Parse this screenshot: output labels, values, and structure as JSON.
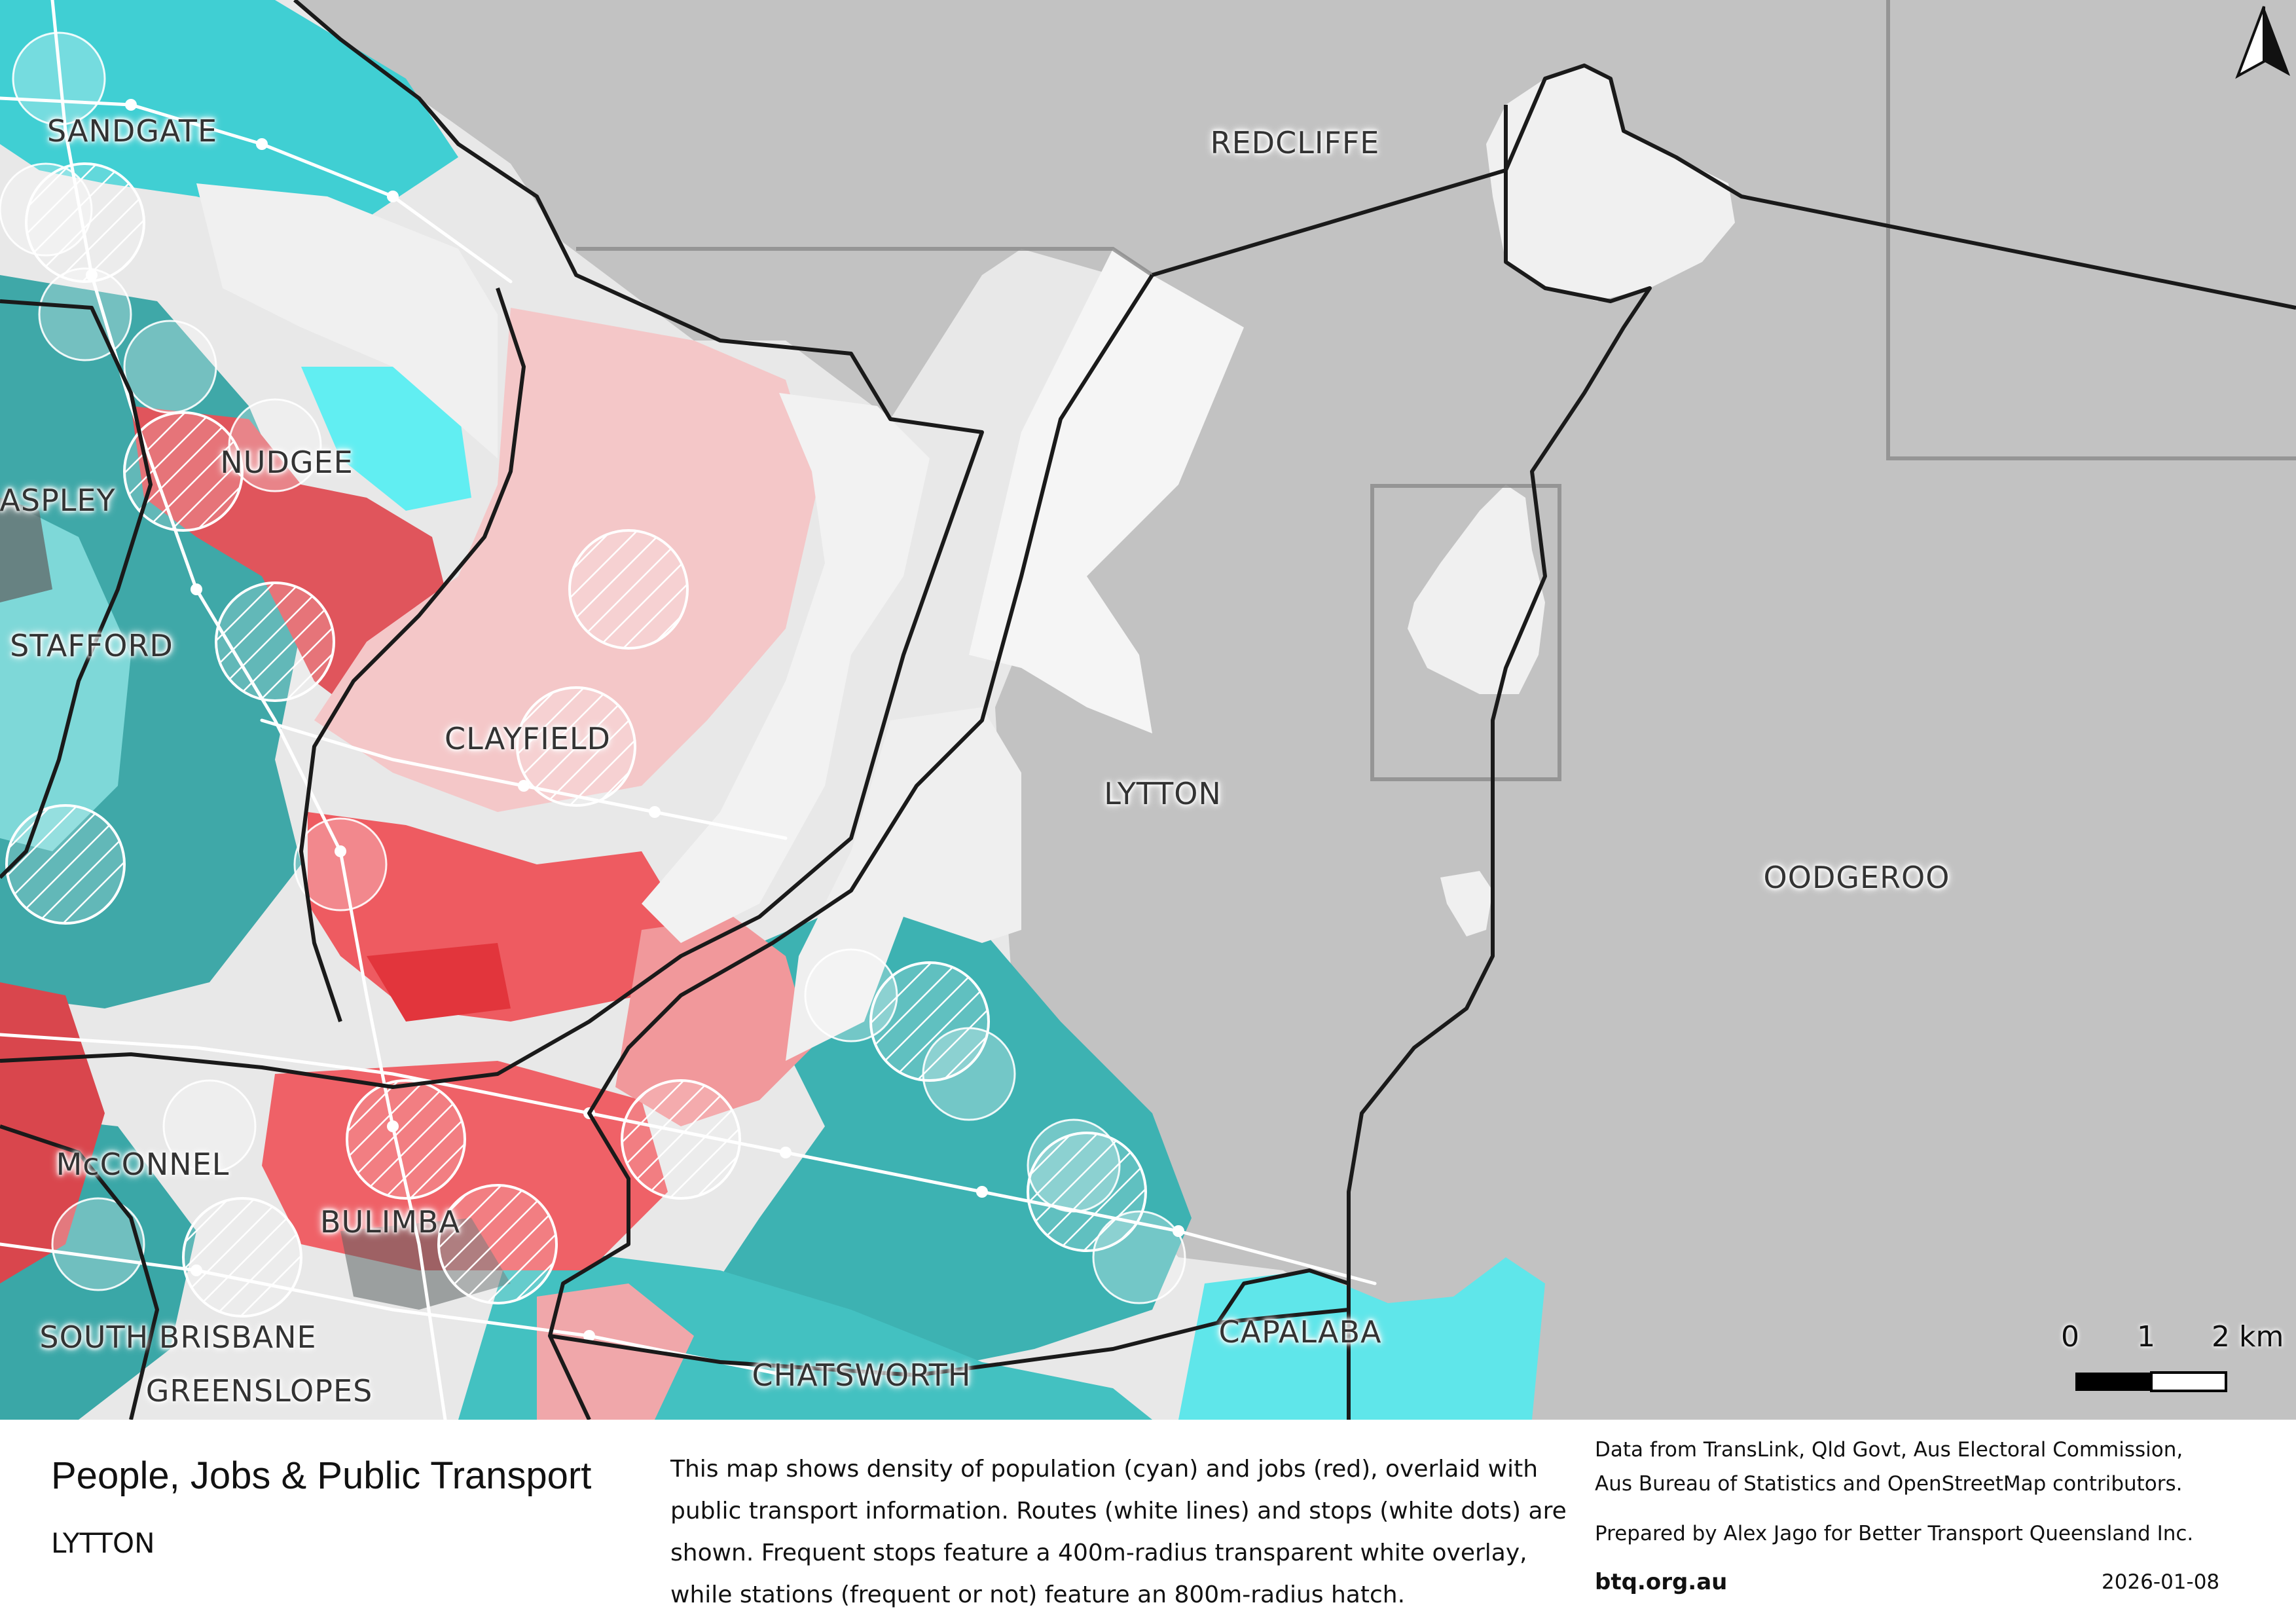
{
  "map": {
    "places": [
      {
        "name": "SANDGATE"
      },
      {
        "name": "REDCLIFFE"
      },
      {
        "name": "NUDGEE"
      },
      {
        "name": "ASPLEY"
      },
      {
        "name": "STAFFORD"
      },
      {
        "name": "CLAYFIELD"
      },
      {
        "name": "LYTTON"
      },
      {
        "name": "OODGEROO"
      },
      {
        "name": "McCONNEL"
      },
      {
        "name": "BULIMBA"
      },
      {
        "name": "SOUTH BRISBANE"
      },
      {
        "name": "GREENSLOPES"
      },
      {
        "name": "CHATSWORTH"
      },
      {
        "name": "CAPALABA"
      }
    ],
    "scale_bar": {
      "tick0": "0",
      "tick1": "1",
      "tick2": "2 km"
    },
    "north_arrow_icon": "north-arrow-icon",
    "colors": {
      "water": "#c2c2c2",
      "population": "#34c7cc",
      "jobs": "#ef4d55",
      "boundary": "#1a1a1a",
      "industrial": "#efefef"
    }
  },
  "footer": {
    "title": "People, Jobs & Public Transport",
    "subtitle": "LYTTON",
    "description": "This map shows density of population (cyan) and jobs (red), overlaid with public transport information. Routes (white lines) and stops (white dots) are shown. Frequent stops feature a 400m-radius transparent white overlay, while stations (frequent or not) feature an 800m-radius hatch.",
    "credits_line1": "Data from TransLink,  Qld Govt,  Aus Electoral Commission,",
    "credits_line2": "Aus Bureau of Statistics and OpenStreetMap contributors.",
    "prepared": "Prepared by Alex Jago for Better Transport Queensland Inc.",
    "site": "btq.org.au",
    "date": "2026-01-08"
  }
}
